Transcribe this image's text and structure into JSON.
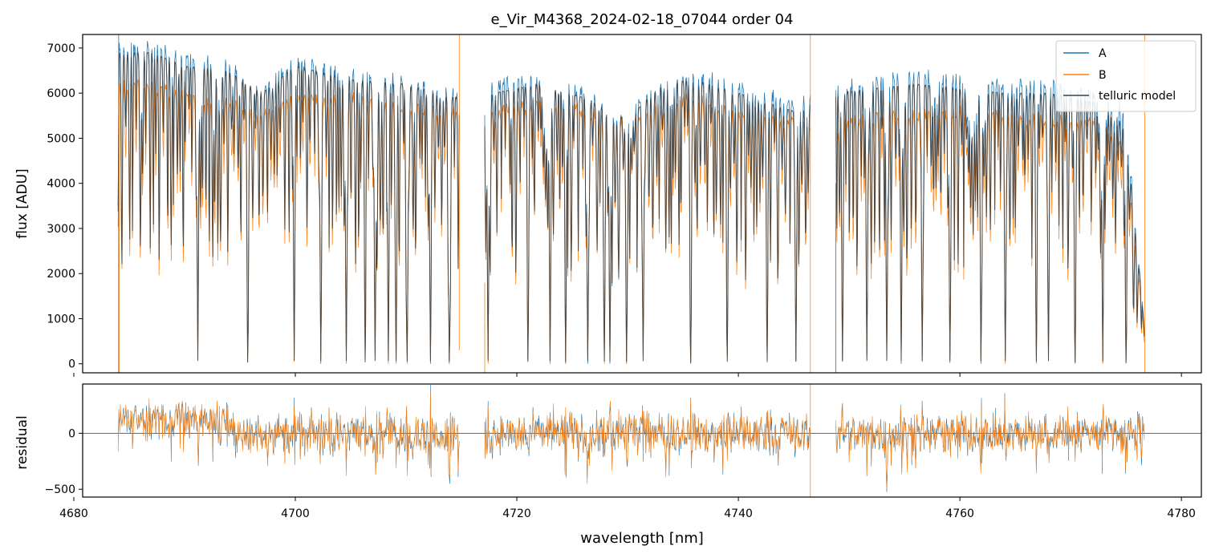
{
  "chart_data": {
    "type": "line",
    "title": "e_Vir_M4368_2024-02-18_07044  order 04",
    "xlabel": "wavelength [nm]",
    "xlim": [
      4680.8,
      4781.8
    ],
    "xticks": [
      4680,
      4700,
      4720,
      4740,
      4760,
      4780
    ],
    "legend": {
      "placement": "top-right",
      "entries": [
        "A",
        "B",
        "telluric model"
      ]
    },
    "colors": {
      "A": "#1f77b4",
      "B": "#ff7f0e",
      "telluric model": "#404040"
    },
    "panels": [
      {
        "name": "flux",
        "ylabel": "flux [ADU]",
        "ylim": [
          -200,
          7300
        ],
        "yticks": [
          0,
          1000,
          2000,
          3000,
          4000,
          5000,
          6000,
          7000
        ],
        "series": [
          {
            "name": "A",
            "x_range": [
              4684.0,
              4776.7
            ],
            "gaps": [
              [
                4714.8,
                4717.1
              ],
              [
                4746.5,
                4748.8
              ]
            ],
            "continuum_points": [
              [
                4684.0,
                7100
              ],
              [
                4687,
                7000
              ],
              [
                4690,
                6800
              ],
              [
                4694,
                6600
              ],
              [
                4697,
                6100
              ],
              [
                4700,
                6700
              ],
              [
                4705,
                6400
              ],
              [
                4710,
                6300
              ],
              [
                4714,
                6000
              ],
              [
                4718,
                6200
              ],
              [
                4722,
                6300
              ],
              [
                4726,
                6000
              ],
              [
                4730,
                5500
              ],
              [
                4733,
                6300
              ],
              [
                4736,
                6400
              ],
              [
                4740,
                6200
              ],
              [
                4745,
                5800
              ],
              [
                4749,
                6100
              ],
              [
                4752,
                6300
              ],
              [
                4756,
                6400
              ],
              [
                4760,
                6300
              ],
              [
                4764,
                6200
              ],
              [
                4768,
                6200
              ],
              [
                4772,
                6000
              ],
              [
                4775,
                5600
              ],
              [
                4776.7,
                700
              ]
            ]
          },
          {
            "name": "B",
            "x_range": [
              4684.0,
              4776.7
            ],
            "gaps": [
              [
                4714.8,
                4717.1
              ],
              [
                4746.5,
                4748.8
              ]
            ],
            "continuum_points": [
              [
                4684.0,
                6200
              ],
              [
                4687,
                6150
              ],
              [
                4690,
                5950
              ],
              [
                4694,
                5800
              ],
              [
                4697,
                5500
              ],
              [
                4700,
                5900
              ],
              [
                4705,
                5900
              ],
              [
                4710,
                5700
              ],
              [
                4714,
                5600
              ],
              [
                4718,
                5600
              ],
              [
                4722,
                5800
              ],
              [
                4726,
                5600
              ],
              [
                4730,
                5300
              ],
              [
                4733,
                5700
              ],
              [
                4736,
                5900
              ],
              [
                4740,
                5500
              ],
              [
                4745,
                5400
              ],
              [
                4749,
                5300
              ],
              [
                4752,
                5500
              ],
              [
                4756,
                5500
              ],
              [
                4760,
                5600
              ],
              [
                4764,
                5500
              ],
              [
                4768,
                5400
              ],
              [
                4772,
                5400
              ],
              [
                4775,
                4800
              ],
              [
                4776.7,
                500
              ]
            ]
          },
          {
            "name": "telluric model",
            "x_range": [
              4684.0,
              4776.7
            ],
            "gaps": [
              [
                4714.8,
                4717.1
              ],
              [
                4746.5,
                4748.8
              ]
            ],
            "continuum_points": [
              [
                4684.0,
                6900
              ],
              [
                4687,
                6900
              ],
              [
                4690,
                6600
              ],
              [
                4694,
                6500
              ],
              [
                4697,
                6000
              ],
              [
                4700,
                6600
              ],
              [
                4705,
                6300
              ],
              [
                4710,
                6200
              ],
              [
                4714,
                5900
              ],
              [
                4718,
                6000
              ],
              [
                4722,
                6200
              ],
              [
                4726,
                5900
              ],
              [
                4730,
                5400
              ],
              [
                4733,
                6200
              ],
              [
                4736,
                6300
              ],
              [
                4740,
                6000
              ],
              [
                4745,
                5600
              ],
              [
                4749,
                6000
              ],
              [
                4752,
                6100
              ],
              [
                4756,
                6200
              ],
              [
                4760,
                6100
              ],
              [
                4764,
                6000
              ],
              [
                4768,
                6000
              ],
              [
                4772,
                5800
              ],
              [
                4775,
                5300
              ],
              [
                4776.7,
                650
              ]
            ]
          }
        ],
        "deep_lines_nm": [
          4691.2,
          4695.7,
          4699.9,
          4702.3,
          4704.6,
          4706.3,
          4707.2,
          4708.4,
          4709.1,
          4710.1,
          4712.2,
          4713.9,
          4717.4,
          4721.0,
          4723.0,
          4724.4,
          4726.4,
          4727.9,
          4728.4,
          4729.9,
          4731.4,
          4735.7,
          4739.0,
          4742.6,
          4745.2,
          4749.4,
          4751.6,
          4753.4,
          4754.7,
          4756.6,
          4759.1,
          4761.9,
          4764.1,
          4766.9,
          4768.0,
          4770.4,
          4772.9,
          4775.0
        ]
      },
      {
        "name": "residual",
        "ylabel": "residual",
        "ylim": [
          -570,
          440
        ],
        "yticks": [
          -500,
          0
        ],
        "zero_line": true,
        "series": [
          {
            "name": "A",
            "x_range": [
              4684.0,
              4776.7
            ],
            "gaps": [
              [
                4714.8,
                4717.1
              ],
              [
                4746.5,
                4748.8
              ]
            ],
            "typical_range": [
              -500,
              440
            ]
          },
          {
            "name": "B",
            "x_range": [
              4684.0,
              4776.7
            ],
            "gaps": [
              [
                4714.8,
                4717.1
              ],
              [
                4746.5,
                4748.8
              ]
            ],
            "typical_range": [
              -500,
              440
            ]
          }
        ]
      }
    ]
  }
}
